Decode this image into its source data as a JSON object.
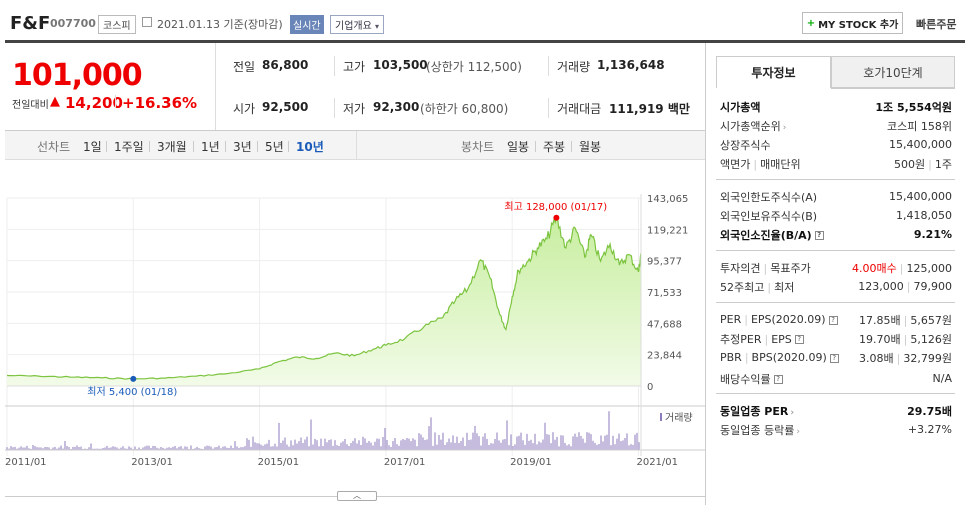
{
  "header": {
    "title": "F&F",
    "code": "007700",
    "market": "코스피",
    "date_text": "2021.01.13 기준(장마감)",
    "live_badge": "실시간",
    "overview_label": "기업개요",
    "mystock_label": "MY STOCK 추가",
    "mystock_plus": "+",
    "quick_order": "빠른주문"
  },
  "price": {
    "current": "101,000",
    "change_label": "전일대비",
    "change_arrow": "▲",
    "change_value": "14,200",
    "change_rate": "+16.36%"
  },
  "stats": {
    "prev_close_label": "전일",
    "prev_close": "86,800",
    "high_label": "고가",
    "high": "103,500",
    "upper_limit": "(상한가 112,500)",
    "volume_label": "거래량",
    "volume": "1,136,648",
    "open_label": "시가",
    "open": "92,500",
    "low_label": "저가",
    "low": "92,300",
    "lower_limit": "(하한가 60,800)",
    "amount_label": "거래대금",
    "amount": "111,919 백만"
  },
  "period_bar": {
    "line_label": "선차트",
    "line_periods": [
      "1일",
      "1주일",
      "3개월",
      "1년",
      "3년",
      "5년",
      "10년"
    ],
    "active_period": "10년",
    "candle_label": "봉차트",
    "candle_periods": [
      "일봉",
      "주봉",
      "월봉"
    ]
  },
  "chart_data": {
    "type": "area",
    "y_ticks": [
      "143,065",
      "119,221",
      "95,377",
      "71,533",
      "47,688",
      "23,844",
      "0"
    ],
    "x_ticks": [
      "2011/01",
      "2013/01",
      "2015/01",
      "2017/01",
      "2019/01",
      "2021/01"
    ],
    "ylim": [
      0,
      143065
    ],
    "xlim": [
      2011.0,
      2021.04
    ],
    "max_annotation": "최고 128,000 (01/17)",
    "min_annotation": "최저 5,400 (01/18)",
    "volume_label": "거래량",
    "colors": {
      "line": "#7cc440",
      "fill_top": "#c8eea0",
      "fill_bottom": "#f2fbe8",
      "volume": "#8c7bbd",
      "max_dot": "#e00",
      "min_dot": "#1a5bb9"
    },
    "series": [
      {
        "x": [
          2011.0,
          2011.5,
          2012.0,
          2012.5,
          2013.0,
          2013.5,
          2014.0,
          2014.5,
          2015.0,
          2015.3,
          2015.6,
          2015.9,
          2016.2,
          2016.5,
          2016.8,
          2017.0,
          2017.3,
          2017.6,
          2017.9,
          2018.1,
          2018.3,
          2018.5,
          2018.65,
          2018.8,
          2018.9,
          2019.0,
          2019.1,
          2019.25,
          2019.4,
          2019.55,
          2019.7,
          2019.85,
          2020.0,
          2020.15,
          2020.25,
          2020.4,
          2020.55,
          2020.7,
          2020.85,
          2021.0,
          2021.04
        ],
        "y": [
          8000,
          7500,
          6800,
          6200,
          5400,
          6000,
          7500,
          9500,
          13000,
          18500,
          22000,
          21000,
          25000,
          23000,
          28000,
          31000,
          36000,
          45000,
          52000,
          65000,
          74000,
          96000,
          82000,
          55000,
          43000,
          68000,
          88000,
          95000,
          105000,
          112000,
          128000,
          105000,
          120000,
          98000,
          115000,
          95000,
          108000,
          92000,
          100000,
          86800,
          101000
        ]
      }
    ]
  },
  "invest": {
    "tab_active": "투자정보",
    "tab_other": "호가10단계",
    "market_cap_label": "시가총액",
    "market_cap": "1조 5,554억원",
    "cap_rank_label": "시가총액순위",
    "cap_rank": "코스피 158위",
    "shares_label": "상장주식수",
    "shares": "15,400,000",
    "par_label": "액면가",
    "trade_unit_label": "매매단위",
    "par_value": "500원",
    "trade_unit": "1주",
    "foreign_limit_label": "외국인한도주식수(A)",
    "foreign_limit": "15,400,000",
    "foreign_holding_label": "외국인보유주식수(B)",
    "foreign_holding": "1,418,050",
    "foreign_ratio_label": "외국인소진율(B/A)",
    "foreign_ratio": "9.21%",
    "opinion_label": "투자의견",
    "target_label": "목표주가",
    "opinion": "4.00매수",
    "target": "125,000",
    "wk52_label": "52주최고",
    "wk52_low_label": "최저",
    "wk52_high": "123,000",
    "wk52_low": "79,900",
    "per_label": "PER",
    "eps_label": "EPS(2020.09)",
    "per": "17.85배",
    "eps": "5,657원",
    "est_per_label": "추정PER",
    "est_eps_label": "EPS",
    "est_per": "19.70배",
    "est_eps": "5,126원",
    "pbr_label": "PBR",
    "bps_label": "BPS(2020.09)",
    "pbr": "3.08배",
    "bps": "32,799원",
    "div_label": "배당수익률",
    "div": "N/A",
    "ind_per_label": "동일업종 PER",
    "ind_per": "29.75배",
    "ind_rate_label": "동일업종 등락률",
    "ind_rate": "+3.27%"
  }
}
